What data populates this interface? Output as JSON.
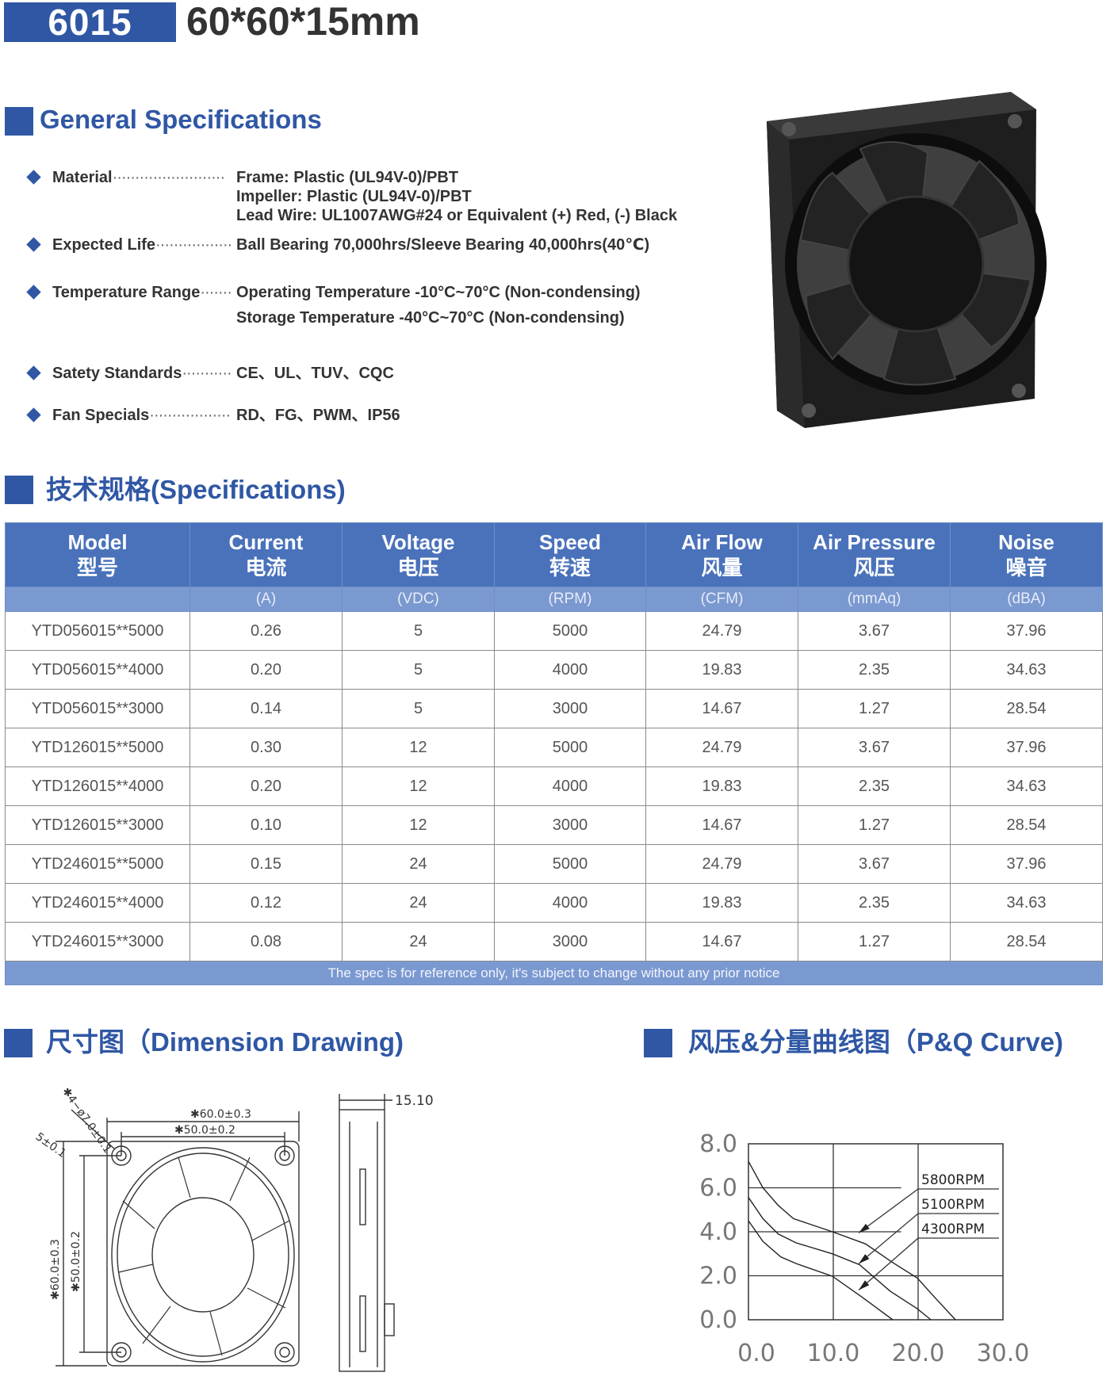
{
  "header": {
    "model": "6015",
    "dimensions": "60*60*15mm"
  },
  "general": {
    "title": "General Specifications",
    "rows": [
      {
        "label": "Material",
        "values": [
          "Frame: Plastic (UL94V-0)/PBT",
          "Impeller: Plastic (UL94V-0)/PBT",
          "Lead Wire: UL1007AWG#24 or Equivalent (+) Red, (-) Black"
        ]
      },
      {
        "label": "Expected Life",
        "values": [
          "Ball Bearing 70,000hrs/Sleeve Bearing 40,000hrs(40℃)"
        ]
      },
      {
        "label": "Temperature Range",
        "values": [
          "Operating Temperature -10°C~70°C (Non-condensing)",
          "Storage Temperature -40°C~70°C (Non-condensing)"
        ]
      },
      {
        "label": "Satety Standards",
        "values": [
          "CE、UL、TUV、CQC"
        ]
      },
      {
        "label": "Fan Specials",
        "values": [
          "RD、FG、PWM、IP56"
        ]
      }
    ],
    "dots": "·························"
  },
  "specs": {
    "title": "技术规格(Specifications)",
    "columns": [
      {
        "en": "Model",
        "cn": "型号",
        "unit": ""
      },
      {
        "en": "Current",
        "cn": "电流",
        "unit": "(A)"
      },
      {
        "en": "Voltage",
        "cn": "电压",
        "unit": "(VDC)"
      },
      {
        "en": "Speed",
        "cn": "转速",
        "unit": "(RPM)"
      },
      {
        "en": "Air Flow",
        "cn": "风量",
        "unit": "(CFM)"
      },
      {
        "en": "Air Pressure",
        "cn": "风压",
        "unit": "(mmAq)"
      },
      {
        "en": "Noise",
        "cn": "噪音",
        "unit": "(dBA)"
      }
    ],
    "rows": [
      [
        "YTD056015**5000",
        "0.26",
        "5",
        "5000",
        "24.79",
        "3.67",
        "37.96"
      ],
      [
        "YTD056015**4000",
        "0.20",
        "5",
        "4000",
        "19.83",
        "2.35",
        "34.63"
      ],
      [
        "YTD056015**3000",
        "0.14",
        "5",
        "3000",
        "14.67",
        "1.27",
        "28.54"
      ],
      [
        "YTD126015**5000",
        "0.30",
        "12",
        "5000",
        "24.79",
        "3.67",
        "37.96"
      ],
      [
        "YTD126015**4000",
        "0.20",
        "12",
        "4000",
        "19.83",
        "2.35",
        "34.63"
      ],
      [
        "YTD126015**3000",
        "0.10",
        "12",
        "3000",
        "14.67",
        "1.27",
        "28.54"
      ],
      [
        "YTD246015**5000",
        "0.15",
        "24",
        "5000",
        "24.79",
        "3.67",
        "37.96"
      ],
      [
        "YTD246015**4000",
        "0.12",
        "24",
        "4000",
        "19.83",
        "2.35",
        "34.63"
      ],
      [
        "YTD246015**3000",
        "0.08",
        "24",
        "3000",
        "14.67",
        "1.27",
        "28.54"
      ]
    ],
    "footnote": "The spec is for reference only, it's subject to change without any prior notice"
  },
  "dimension": {
    "title": "尺寸图（Dimension Drawing)",
    "labels": {
      "holes": "✱4−ø7.0±0.1",
      "corner": "5±0.1",
      "width_outer": "✱60.0±0.3",
      "width_inner": "✱50.0±0.2",
      "height_outer": "✱60.0±0.3",
      "height_inner": "✱50.0±0.2",
      "thickness": "15.10"
    }
  },
  "pq": {
    "title": "风压&分量曲线图（P&Q Curve)"
  },
  "colors": {
    "brand": "#2f57a4",
    "table_header": "#4a72bb",
    "table_units": "#7b99d1"
  },
  "chart_data": {
    "type": "line",
    "title": "",
    "xlabel": "",
    "ylabel": "",
    "xlim": [
      0,
      30
    ],
    "ylim": [
      0,
      8
    ],
    "xticks": [
      "0.0",
      "10.0",
      "20.0",
      "30.0"
    ],
    "yticks": [
      "0.0",
      "2.0",
      "4.0",
      "6.0",
      "8.0"
    ],
    "grid": true,
    "legend": "right (labels with leader arrows)",
    "series": [
      {
        "name": "5800RPM",
        "x": [
          0,
          1.7,
          3.5,
          5.3,
          9.9,
          13.8,
          17,
          19.9,
          22,
          24.4
        ],
        "y": [
          7.2,
          6.0,
          5.2,
          4.6,
          4.0,
          3.45,
          2.6,
          1.9,
          1.0,
          0
        ]
      },
      {
        "name": "5100RPM",
        "x": [
          0,
          1.7,
          3.5,
          5.6,
          9.9,
          13.1,
          16.7,
          19.9,
          21.5
        ],
        "y": [
          5.56,
          4.6,
          3.9,
          3.5,
          3.0,
          2.5,
          1.3,
          0.5,
          0
        ]
      },
      {
        "name": "4300RPM",
        "x": [
          0,
          1.7,
          3.8,
          5.6,
          9.9,
          13.5,
          17
        ],
        "y": [
          4.5,
          3.56,
          2.86,
          2.56,
          1.98,
          1.0,
          0
        ]
      }
    ]
  }
}
